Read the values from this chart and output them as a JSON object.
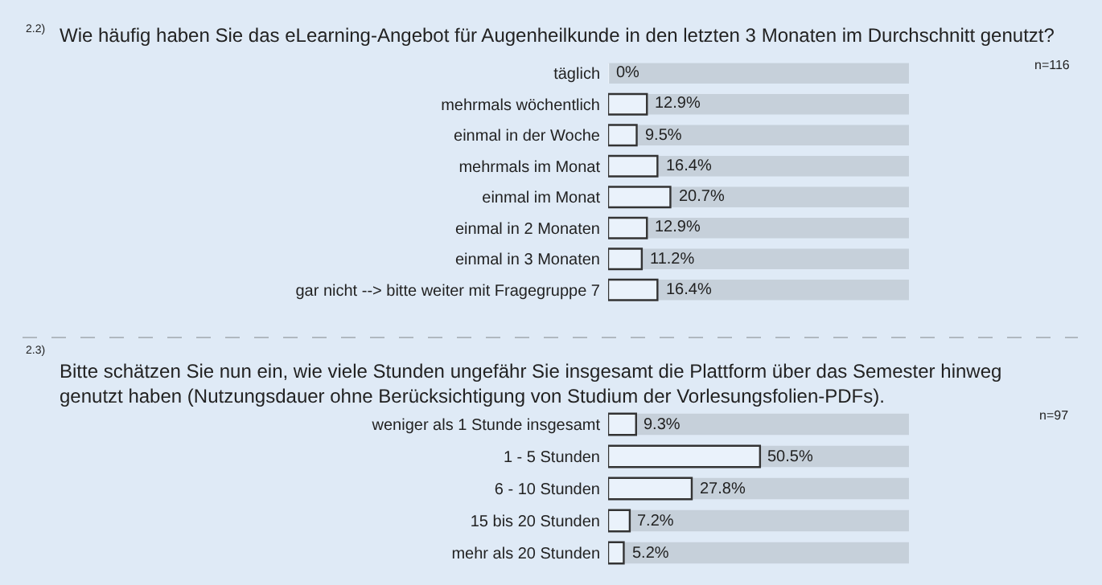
{
  "chart_data": [
    {
      "type": "bar",
      "orientation": "horizontal",
      "title": "Wie häufig haben Sie das eLearning-Angebot für Augenheilkunde in den letzten 3 Monaten im Durchschnitt genutzt?",
      "categories": [
        "täglich",
        "mehrmals wöchentlich",
        "einmal in der Woche",
        "mehrmals im Monat",
        "einmal im Monat",
        "einmal in 2 Monaten",
        "einmal in 3 Monaten",
        "gar nicht --> bitte weiter mit Fragegruppe 7"
      ],
      "values": [
        0,
        12.9,
        9.5,
        16.4,
        20.7,
        12.9,
        11.2,
        16.4
      ],
      "value_labels": [
        "0%",
        "12.9%",
        "9.5%",
        "16.4%",
        "20.7%",
        "12.9%",
        "11.2%",
        "16.4%"
      ],
      "color": "#eaf2fb",
      "xlim": [
        0,
        100
      ],
      "tick_labels": "y",
      "grid": false,
      "legend": false,
      "annotations": [
        "2.2)",
        "n=116"
      ]
    },
    {
      "type": "bar",
      "orientation": "horizontal",
      "title": "Bitte schätzen Sie nun ein, wie viele Stunden ungefähr Sie insgesamt die Plattform über das Semester hinweg genutzt haben (Nutzungsdauer ohne Berücksichtigung von Studium der Vorlesungsfolien-PDFs).",
      "categories": [
        "weniger als 1 Stunde insgesamt",
        "1 - 5 Stunden",
        "6 - 10 Stunden",
        "15 bis 20 Stunden",
        "mehr als 20 Stunden"
      ],
      "values": [
        9.3,
        50.5,
        27.8,
        7.2,
        5.2
      ],
      "value_labels": [
        "9.3%",
        "50.5%",
        "27.8%",
        "7.2%",
        "5.2%"
      ],
      "color": "#eaf2fb",
      "xlim": [
        0,
        100
      ],
      "tick_labels": "y",
      "grid": false,
      "legend": false,
      "annotations": [
        "2.3)",
        "n=97"
      ]
    }
  ]
}
